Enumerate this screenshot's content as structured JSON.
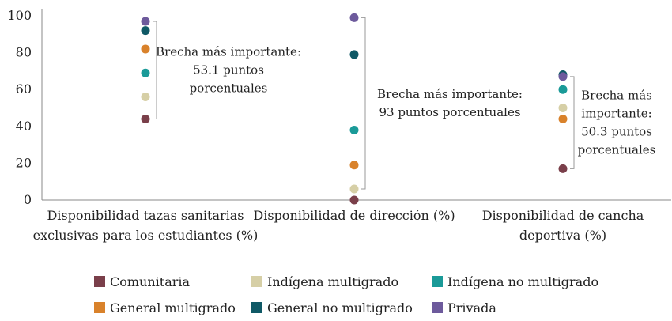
{
  "chart_data": {
    "type": "scatter",
    "title": "",
    "xlabel": "",
    "ylabel": "",
    "ylim": [
      0,
      100
    ],
    "yticks": [
      0,
      20,
      40,
      60,
      80,
      100
    ],
    "grid": false,
    "legend_position": "bottom",
    "categories": [
      [
        "Disponibilidad tazas sanitarias",
        "exclusivas para los estudiantes (%)"
      ],
      [
        "Disponibilidad de dirección (%)"
      ],
      [
        "Disponibilidad de cancha",
        "deportiva (%)"
      ]
    ],
    "series": [
      {
        "name": "Comunitaria",
        "color": "#7a3f4a",
        "values": [
          44,
          0,
          17
        ]
      },
      {
        "name": "Indígena multigrado",
        "color": "#d6cfa6",
        "values": [
          56,
          6,
          50
        ]
      },
      {
        "name": "Indígena no multigrado",
        "color": "#1a9a98",
        "values": [
          69,
          38,
          60
        ]
      },
      {
        "name": "General multigrado",
        "color": "#d9822b",
        "values": [
          82,
          19,
          44
        ]
      },
      {
        "name": "General no multigrado",
        "color": "#0f5966",
        "values": [
          92,
          79,
          68
        ]
      },
      {
        "name": "Privada",
        "color": "#6d5a9c",
        "values": [
          97,
          99,
          67
        ]
      }
    ],
    "annotations": [
      {
        "category": 0,
        "low": 44,
        "high": 97,
        "lines": [
          "Brecha más importante:",
          "53.1 puntos",
          "porcentuales"
        ]
      },
      {
        "category": 1,
        "low": 6,
        "high": 99,
        "lines": [
          "Brecha más importante:",
          "93 puntos porcentuales"
        ]
      },
      {
        "category": 2,
        "low": 17,
        "high": 67,
        "lines": [
          "Brecha más",
          "importante:",
          "50.3 puntos",
          "porcentuales"
        ]
      }
    ],
    "legend_rows": [
      [
        "Comunitaria",
        "Indígena multigrado",
        "Indígena no multigrado"
      ],
      [
        "General multigrado",
        "General no multigrado",
        "Privada"
      ]
    ]
  }
}
